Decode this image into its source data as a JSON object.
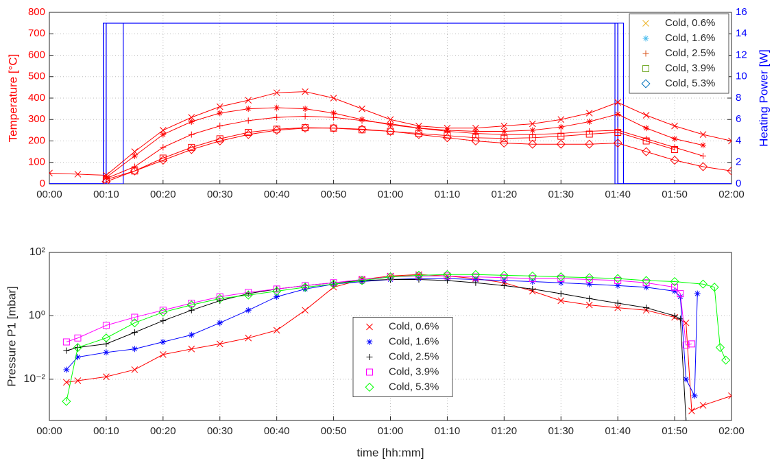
{
  "chart_data": [
    {
      "type": "line",
      "ylabel": "Temperature [°C]",
      "y2label": "Heating Power [W]",
      "x": [
        0,
        5,
        10,
        15,
        20,
        25,
        30,
        35,
        40,
        45,
        50,
        55,
        60,
        65,
        70,
        75,
        80,
        85,
        90,
        95,
        100,
        105,
        110,
        115,
        120
      ],
      "xlim": [
        0,
        120
      ],
      "xticks": [
        {
          "value": 0,
          "label": "00:00"
        },
        {
          "value": 10,
          "label": "00:10"
        },
        {
          "value": 20,
          "label": "00:20"
        },
        {
          "value": 30,
          "label": "00:30"
        },
        {
          "value": 40,
          "label": "00:40"
        },
        {
          "value": 50,
          "label": "00:50"
        },
        {
          "value": 60,
          "label": "01:00"
        },
        {
          "value": 70,
          "label": "01:10"
        },
        {
          "value": 80,
          "label": "01:20"
        },
        {
          "value": 90,
          "label": "01:30"
        },
        {
          "value": 100,
          "label": "01:40"
        },
        {
          "value": 110,
          "label": "01:50"
        },
        {
          "value": 120,
          "label": "02:00"
        }
      ],
      "ylim": [
        0,
        800
      ],
      "yticks": [
        0,
        100,
        200,
        300,
        400,
        500,
        600,
        700,
        800
      ],
      "y2lim": [
        0,
        16
      ],
      "y2ticks": [
        0,
        2,
        4,
        6,
        8,
        10,
        12,
        14,
        16
      ],
      "grid": true,
      "legend": "upper right",
      "line_color": "#ff0000",
      "y2_color": "#0000ff",
      "series": [
        {
          "name": "Cold, 0.6%",
          "marker": "x",
          "color": "#edb120",
          "values": [
            50,
            45,
            40,
            150,
            250,
            310,
            360,
            390,
            425,
            430,
            400,
            350,
            300,
            270,
            260,
            260,
            270,
            280,
            300,
            330,
            380,
            320,
            270,
            230,
            200
          ]
        },
        {
          "name": "Cold, 1.6%",
          "marker": "star",
          "color": "#4dbeee",
          "values": [
            null,
            null,
            30,
            130,
            230,
            290,
            330,
            350,
            355,
            350,
            330,
            300,
            275,
            260,
            250,
            245,
            245,
            250,
            265,
            290,
            325,
            260,
            210,
            180,
            null
          ]
        },
        {
          "name": "Cold, 2.5%",
          "marker": "plus",
          "color": "#d95319",
          "values": [
            null,
            null,
            25,
            80,
            170,
            230,
            270,
            295,
            310,
            315,
            310,
            295,
            280,
            260,
            245,
            235,
            230,
            230,
            235,
            245,
            250,
            210,
            170,
            130,
            null
          ]
        },
        {
          "name": "Cold, 3.9%",
          "marker": "square",
          "color": "#77ac30",
          "values": [
            null,
            null,
            20,
            60,
            120,
            170,
            210,
            240,
            255,
            262,
            260,
            252,
            245,
            235,
            225,
            215,
            212,
            215,
            222,
            232,
            240,
            200,
            160,
            null,
            null
          ]
        },
        {
          "name": "Cold, 5.3%",
          "marker": "diamond",
          "color": "#0072bd",
          "values": [
            null,
            null,
            10,
            60,
            110,
            160,
            200,
            230,
            250,
            260,
            260,
            255,
            245,
            230,
            215,
            200,
            190,
            185,
            185,
            185,
            190,
            150,
            110,
            80,
            60
          ]
        }
      ],
      "power_series": [
        {
          "axis": "y2",
          "x": [
            0,
            9.5,
            9.5,
            99.5,
            99.5,
            120
          ],
          "values": [
            0,
            0,
            15,
            15,
            0,
            0
          ]
        },
        {
          "axis": "y2",
          "x": [
            0,
            10,
            10,
            100,
            100,
            120
          ],
          "values": [
            0,
            0,
            15,
            15,
            0,
            0
          ]
        },
        {
          "axis": "y2",
          "x": [
            0,
            10,
            10,
            100,
            100,
            120
          ],
          "values": [
            0,
            0,
            15,
            15,
            0,
            0
          ]
        },
        {
          "axis": "y2",
          "x": [
            0,
            13,
            13,
            101,
            101,
            120
          ],
          "values": [
            0,
            0,
            15,
            15,
            0,
            0
          ]
        },
        {
          "axis": "y2",
          "x": [
            0,
            9.5,
            9.5,
            100,
            100,
            120
          ],
          "values": [
            0,
            0,
            15,
            15,
            0,
            0
          ]
        }
      ]
    },
    {
      "type": "line",
      "xlabel": "time [hh:mm]",
      "ylabel": "Pressure P1 [mbar]",
      "yscale": "log",
      "xlim": [
        0,
        120
      ],
      "xticks": [
        {
          "value": 0,
          "label": "00:00"
        },
        {
          "value": 10,
          "label": "00:10"
        },
        {
          "value": 20,
          "label": "00:20"
        },
        {
          "value": 30,
          "label": "00:30"
        },
        {
          "value": 40,
          "label": "00:40"
        },
        {
          "value": 50,
          "label": "00:50"
        },
        {
          "value": 60,
          "label": "01:00"
        },
        {
          "value": 70,
          "label": "01:10"
        },
        {
          "value": 80,
          "label": "01:20"
        },
        {
          "value": 90,
          "label": "01:30"
        },
        {
          "value": 100,
          "label": "01:40"
        },
        {
          "value": 110,
          "label": "01:50"
        },
        {
          "value": 120,
          "label": "02:00"
        }
      ],
      "ylim": [
        0.0005,
        100
      ],
      "yticks": [
        {
          "value": 0.01,
          "label": "10⁻²"
        },
        {
          "value": 1,
          "label": "10⁰"
        },
        {
          "value": 100,
          "label": "10²"
        }
      ],
      "grid": true,
      "legend": "center",
      "series": [
        {
          "name": "Cold, 0.6%",
          "marker": "x",
          "color": "#ff0000",
          "x": [
            3,
            5,
            10,
            15,
            20,
            25,
            30,
            35,
            40,
            45,
            50,
            55,
            60,
            65,
            70,
            75,
            80,
            85,
            90,
            95,
            100,
            105,
            110,
            112,
            113,
            115,
            120
          ],
          "values": [
            0.008,
            0.009,
            0.012,
            0.02,
            0.06,
            0.09,
            0.13,
            0.2,
            0.35,
            1.5,
            8,
            14,
            18,
            20,
            18,
            15,
            11,
            6,
            3,
            2.2,
            1.8,
            1.5,
            0.9,
            0.6,
            0.001,
            0.0015,
            0.003
          ]
        },
        {
          "name": "Cold, 1.6%",
          "marker": "star",
          "color": "#0000ff",
          "x": [
            3,
            5,
            10,
            15,
            20,
            25,
            30,
            35,
            40,
            45,
            50,
            55,
            60,
            65,
            70,
            75,
            80,
            85,
            90,
            95,
            100,
            105,
            110,
            111,
            112,
            113.5,
            114
          ],
          "values": [
            0.02,
            0.05,
            0.07,
            0.09,
            0.15,
            0.25,
            0.6,
            1.5,
            4,
            7,
            10,
            12,
            14,
            15,
            15,
            14,
            13,
            12,
            11,
            10,
            9,
            8,
            6,
            4,
            0.01,
            0.003,
            5
          ]
        },
        {
          "name": "Cold, 2.5%",
          "marker": "plus",
          "color": "#000000",
          "x": [
            3,
            5,
            10,
            15,
            20,
            25,
            30,
            35,
            40,
            45,
            50,
            55,
            60,
            65,
            70,
            75,
            80,
            85,
            90,
            95,
            100,
            105,
            110,
            111,
            112
          ],
          "values": [
            0.08,
            0.1,
            0.13,
            0.3,
            0.7,
            1.5,
            3,
            5,
            7,
            9,
            11,
            13,
            14,
            14,
            13,
            11,
            9,
            7,
            5,
            3.5,
            2.5,
            1.8,
            1.0,
            0.8,
            0.0005
          ]
        },
        {
          "name": "Cold, 3.9%",
          "marker": "square",
          "color": "#ff00ff",
          "x": [
            3,
            5,
            10,
            15,
            20,
            25,
            30,
            35,
            40,
            45,
            50,
            55,
            60,
            65,
            70,
            75,
            80,
            85,
            90,
            95,
            100,
            105,
            110,
            111,
            112,
            113
          ],
          "values": [
            0.15,
            0.2,
            0.5,
            0.9,
            1.5,
            2.5,
            4,
            5.5,
            7,
            9,
            11,
            14,
            17,
            18,
            18,
            17,
            16,
            15,
            15,
            14,
            13,
            11,
            8,
            5,
            0.12,
            0.13
          ]
        },
        {
          "name": "Cold, 5.3%",
          "marker": "diamond",
          "color": "#00ff00",
          "x": [
            3,
            5,
            10,
            15,
            20,
            25,
            30,
            35,
            40,
            45,
            50,
            55,
            60,
            65,
            70,
            75,
            80,
            85,
            90,
            95,
            100,
            105,
            110,
            115,
            117,
            118,
            119
          ],
          "values": [
            0.002,
            0.1,
            0.2,
            0.6,
            1.3,
            2.2,
            3.5,
            4.5,
            6,
            8,
            10,
            13,
            17,
            19,
            20,
            20,
            19,
            18,
            17,
            16,
            15,
            13,
            12,
            10,
            8,
            0.1,
            0.04
          ]
        }
      ]
    }
  ]
}
